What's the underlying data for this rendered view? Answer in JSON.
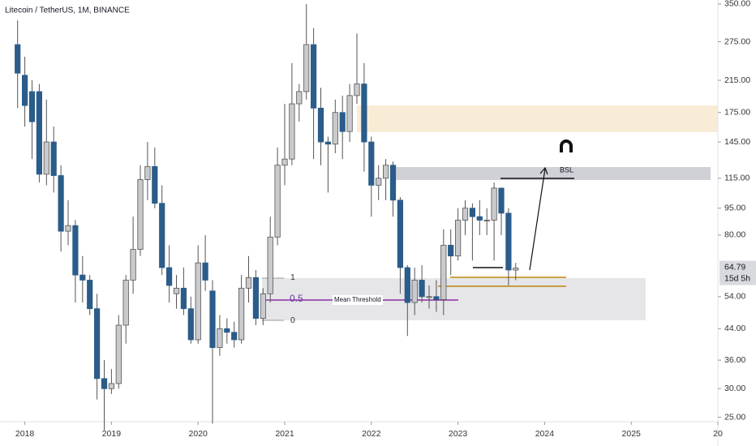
{
  "chart_data": {
    "type": "candlestick",
    "title": "Litecoin / TetherUS, 1M, BINANCE",
    "log": true,
    "up_color": "#c9cacd",
    "down_color": "#2b5c8a",
    "x": [
      "2017-12",
      "2018-01",
      "2018-02",
      "2018-03",
      "2018-04",
      "2018-05",
      "2018-06",
      "2018-07",
      "2018-08",
      "2018-09",
      "2018-10",
      "2018-11",
      "2018-12",
      "2019-01",
      "2019-02",
      "2019-03",
      "2019-04",
      "2019-05",
      "2019-06",
      "2019-07",
      "2019-08",
      "2019-09",
      "2019-10",
      "2019-11",
      "2019-12",
      "2020-01",
      "2020-02",
      "2020-03",
      "2020-04",
      "2020-05",
      "2020-06",
      "2020-07",
      "2020-08",
      "2020-09",
      "2020-10",
      "2020-11",
      "2020-12",
      "2021-01",
      "2021-02",
      "2021-03",
      "2021-04",
      "2021-05",
      "2021-06",
      "2021-07",
      "2021-08",
      "2021-09",
      "2021-10",
      "2021-11",
      "2021-12",
      "2022-01",
      "2022-02",
      "2022-03",
      "2022-04",
      "2022-05",
      "2022-06",
      "2022-07",
      "2022-08",
      "2022-09",
      "2022-10",
      "2022-11",
      "2022-12",
      "2023-01",
      "2023-02",
      "2023-03",
      "2023-04",
      "2023-05",
      "2023-06",
      "2023-07",
      "2023-08",
      "2023-09"
    ],
    "open": [
      270,
      222,
      200,
      200,
      118,
      145,
      117,
      82,
      85,
      62,
      60,
      50,
      32,
      30,
      31,
      45,
      60,
      73,
      114,
      124,
      98,
      65,
      55,
      57,
      50,
      41,
      67,
      56,
      39,
      44,
      43,
      41,
      57,
      61,
      47,
      55,
      79,
      125,
      130,
      185,
      200,
      270,
      180,
      145,
      143,
      175,
      155,
      195,
      210,
      145,
      110,
      115,
      125,
      100,
      65,
      52,
      60,
      54,
      54,
      53,
      75,
      70,
      88,
      95,
      90,
      88,
      88,
      108,
      92,
      64
    ],
    "high": [
      315,
      250,
      215,
      210,
      190,
      160,
      125,
      100,
      88,
      70,
      62,
      55,
      36,
      34,
      48,
      62,
      90,
      125,
      145,
      140,
      110,
      75,
      62,
      65,
      54,
      75,
      80,
      60,
      48,
      47,
      46,
      62,
      70,
      64,
      57,
      90,
      140,
      185,
      240,
      210,
      350,
      300,
      205,
      150,
      190,
      195,
      210,
      290,
      240,
      150,
      125,
      130,
      128,
      102,
      66,
      65,
      66,
      58,
      60,
      83,
      83,
      95,
      100,
      98,
      100,
      95,
      112,
      108,
      95,
      67
    ],
    "low": [
      180,
      160,
      130,
      112,
      110,
      105,
      72,
      75,
      52,
      52,
      48,
      28,
      23,
      29,
      30,
      40,
      55,
      70,
      100,
      95,
      62,
      52,
      50,
      48,
      40,
      40,
      56,
      24,
      37,
      40,
      39,
      40,
      52,
      45,
      45,
      52,
      75,
      110,
      125,
      165,
      190,
      130,
      125,
      105,
      135,
      130,
      145,
      185,
      120,
      90,
      100,
      100,
      90,
      55,
      42,
      48,
      52,
      50,
      49,
      48,
      62,
      68,
      80,
      68,
      80,
      80,
      68,
      80,
      58,
      60
    ],
    "close": [
      225,
      183,
      165,
      118,
      145,
      117,
      82,
      85,
      62,
      60,
      50,
      32,
      30,
      31,
      45,
      60,
      73,
      114,
      124,
      98,
      65,
      58,
      57,
      50,
      41,
      67,
      60,
      39,
      44,
      43,
      41,
      57,
      61,
      47,
      55,
      79,
      125,
      130,
      185,
      200,
      270,
      180,
      145,
      143,
      175,
      155,
      195,
      210,
      145,
      110,
      115,
      125,
      100,
      65,
      52,
      60,
      54,
      54,
      53,
      75,
      70,
      88,
      95,
      90,
      88,
      88,
      108,
      92,
      64,
      64.79
    ],
    "xlim": [
      "2017-09",
      "2026-01"
    ],
    "xticks": [
      {
        "value": "2018-01",
        "label": "2018"
      },
      {
        "value": "2019-01",
        "label": "2019"
      },
      {
        "value": "2020-01",
        "label": "2020"
      },
      {
        "value": "2021-01",
        "label": "2021"
      },
      {
        "value": "2022-01",
        "label": "2022"
      },
      {
        "value": "2023-01",
        "label": "2023"
      },
      {
        "value": "2024-01",
        "label": "2024"
      },
      {
        "value": "2025-01",
        "label": "2025"
      },
      {
        "value": "2026-01",
        "label": "20"
      }
    ],
    "ylim": [
      24.3,
      359
    ],
    "yticks": [
      {
        "value": 350,
        "label": "350.00"
      },
      {
        "value": 275,
        "label": "275.00"
      },
      {
        "value": 215,
        "label": "215.00"
      },
      {
        "value": 175,
        "label": "175.00"
      },
      {
        "value": 145,
        "label": "145.00"
      },
      {
        "value": 115,
        "label": "115.00"
      },
      {
        "value": 95,
        "label": "95.00"
      },
      {
        "value": 80,
        "label": "80.00"
      },
      {
        "value": 54,
        "label": "54.00"
      },
      {
        "value": 44,
        "label": "44.00"
      },
      {
        "value": 36,
        "label": "36.00"
      },
      {
        "value": 30,
        "label": "30.00"
      },
      {
        "value": 25,
        "label": "25.00"
      }
    ],
    "last_price": 64.79,
    "countdown": "15d 5h",
    "annotations": {
      "bsl": "BSL",
      "fib_1": "1",
      "fib_half": "0.5",
      "fib_0": "0",
      "mean_threshold": "Mean Threshold"
    }
  }
}
